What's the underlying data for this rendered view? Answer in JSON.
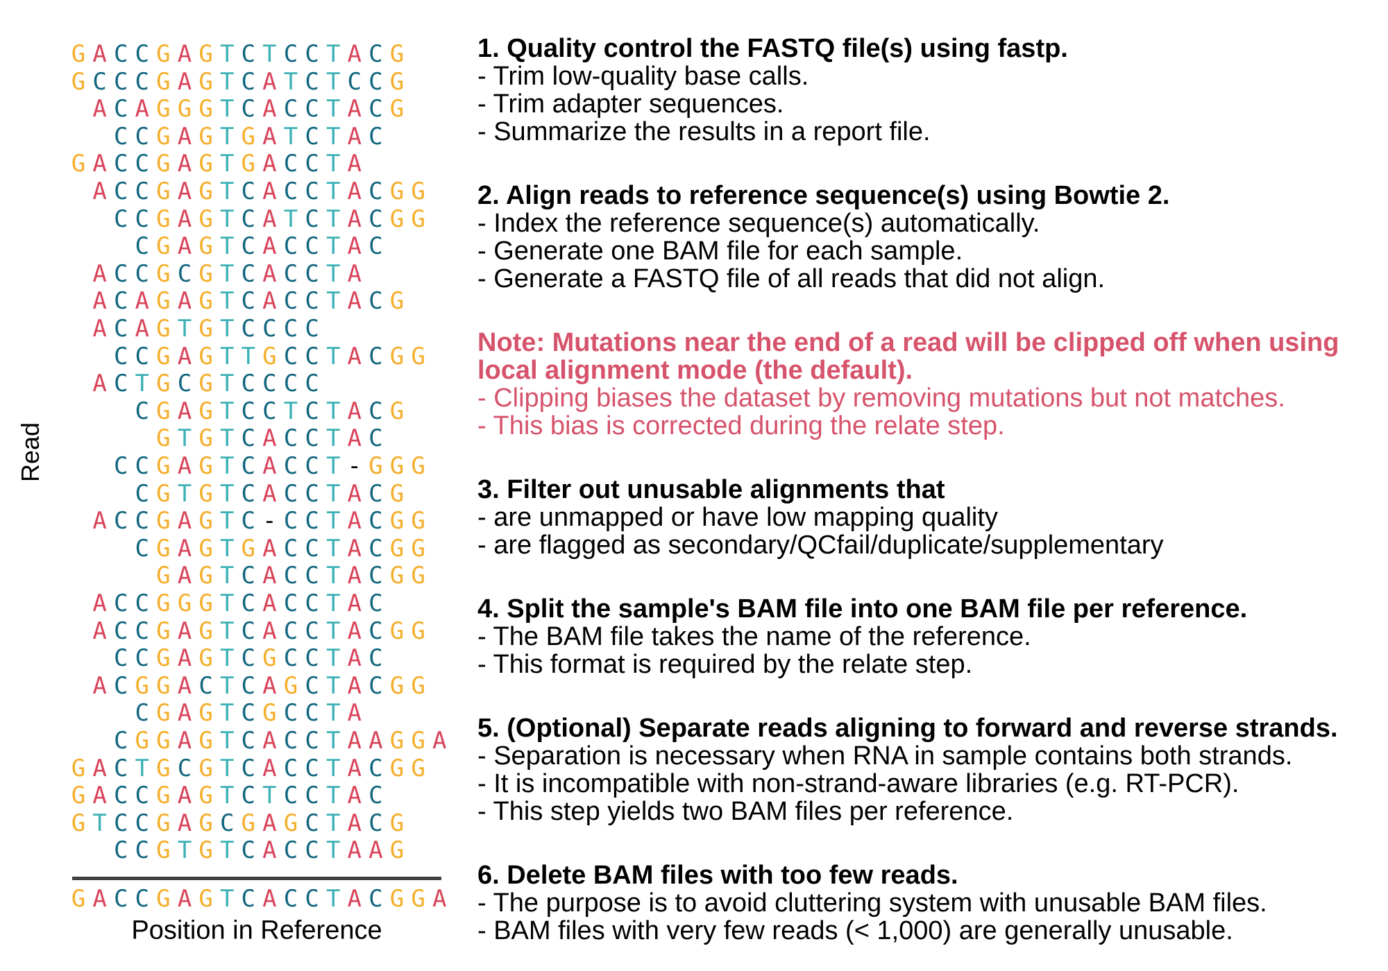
{
  "colors": {
    "G": "#f4ae2a",
    "A": "#d9435a",
    "C": "#11667f",
    "T": "#3bb1b5",
    "gap": "#000000",
    "note": "#d6536b"
  },
  "alignment": {
    "y_label": "Read",
    "x_label": "Position in Reference",
    "reference": "GACCGAGTCACCTACGGA",
    "reads": [
      {
        "start": 0,
        "seq": "GACCGAGTCTCCTACG"
      },
      {
        "start": 0,
        "seq": "GCCCGAGTCATCTCCG"
      },
      {
        "start": 1,
        "seq": "ACAGGGTCACCTACG"
      },
      {
        "start": 2,
        "seq": "CCGAGTGATCTAC"
      },
      {
        "start": 0,
        "seq": "GACCGAGTGACCTA"
      },
      {
        "start": 1,
        "seq": "ACCGAGTCACCTACGG"
      },
      {
        "start": 2,
        "seq": "CCGAGTCATCTACGG"
      },
      {
        "start": 3,
        "seq": "CGAGTCACCTAC"
      },
      {
        "start": 1,
        "seq": "ACCGCGTCACCTA"
      },
      {
        "start": 1,
        "seq": "ACAGAGTCACCTACG"
      },
      {
        "start": 1,
        "seq": "ACAGTGTCCCC"
      },
      {
        "start": 2,
        "seq": "CCGAGTTGCCTACGG"
      },
      {
        "start": 1,
        "seq": "ACTGCGTCCCC"
      },
      {
        "start": 3,
        "seq": "CGAGTCCTCTACG"
      },
      {
        "start": 4,
        "seq": "GTGTCACCTAC"
      },
      {
        "start": 2,
        "seq": "CCGAGTCACCT-GGG"
      },
      {
        "start": 3,
        "seq": "CGTGTCACCTACG"
      },
      {
        "start": 1,
        "seq": "ACCGAGTC-CCTACGG"
      },
      {
        "start": 3,
        "seq": "CGAGTGACCTACGG"
      },
      {
        "start": 4,
        "seq": "GAGTCACCTACGG"
      },
      {
        "start": 1,
        "seq": "ACCGGGTCACCTAC"
      },
      {
        "start": 1,
        "seq": "ACCGAGTCACCTACGG"
      },
      {
        "start": 2,
        "seq": "CCGAGTCGCCTAC"
      },
      {
        "start": 1,
        "seq": "ACGGACTCAGCTACGG"
      },
      {
        "start": 3,
        "seq": "CGAGTCGCCTA"
      },
      {
        "start": 2,
        "seq": "CGGAGTCACCTAAGGA"
      },
      {
        "start": 0,
        "seq": "GACTGCGTCACCTACGG"
      },
      {
        "start": 0,
        "seq": "GACCGAGTCTCCTAC"
      },
      {
        "start": 0,
        "seq": "GTCCGAGCGAGCTACG"
      },
      {
        "start": 2,
        "seq": "CCGTGTCACCTAAG"
      }
    ]
  },
  "steps": [
    {
      "title": "1. Quality control the FASTQ file(s) using fastp.",
      "lines": [
        "- Trim low-quality base calls.",
        "- Trim adapter sequences.",
        "- Summarize the results in a report file."
      ]
    },
    {
      "title": "2. Align reads to reference sequence(s) using Bowtie 2.",
      "lines": [
        "- Index the reference sequence(s) automatically.",
        "- Generate one BAM file for each sample.",
        "- Generate a FASTQ file of all reads that did not align."
      ]
    },
    {
      "title": "Note: Mutations near the end of a read will be clipped off when using",
      "title2": "local alignment mode (the default).",
      "lines": [
        "- Clipping biases the dataset by removing mutations but not matches.",
        "- This bias is corrected during the relate step."
      ]
    },
    {
      "title": "3. Filter out unusable alignments that",
      "lines": [
        "- are unmapped or have low mapping quality",
        "- are flagged as secondary/QCfail/duplicate/supplementary"
      ]
    },
    {
      "title": "4. Split the sample's BAM file into one BAM file per reference.",
      "lines": [
        "- The BAM file takes the name of the reference.",
        "- This format is required by the relate step."
      ]
    },
    {
      "title": "5. (Optional) Separate reads aligning to forward and reverse strands.",
      "lines": [
        "- Separation is necessary when RNA in sample contains both strands.",
        "- It is incompatible with non-strand-aware libraries (e.g. RT-PCR).",
        "- This step yields two BAM files per reference."
      ]
    },
    {
      "title": "6. Delete BAM files with too few reads.",
      "lines": [
        "- The purpose is to avoid cluttering system with unusable BAM files.",
        "- BAM files with very few reads (< 1,000) are generally unusable."
      ]
    }
  ]
}
